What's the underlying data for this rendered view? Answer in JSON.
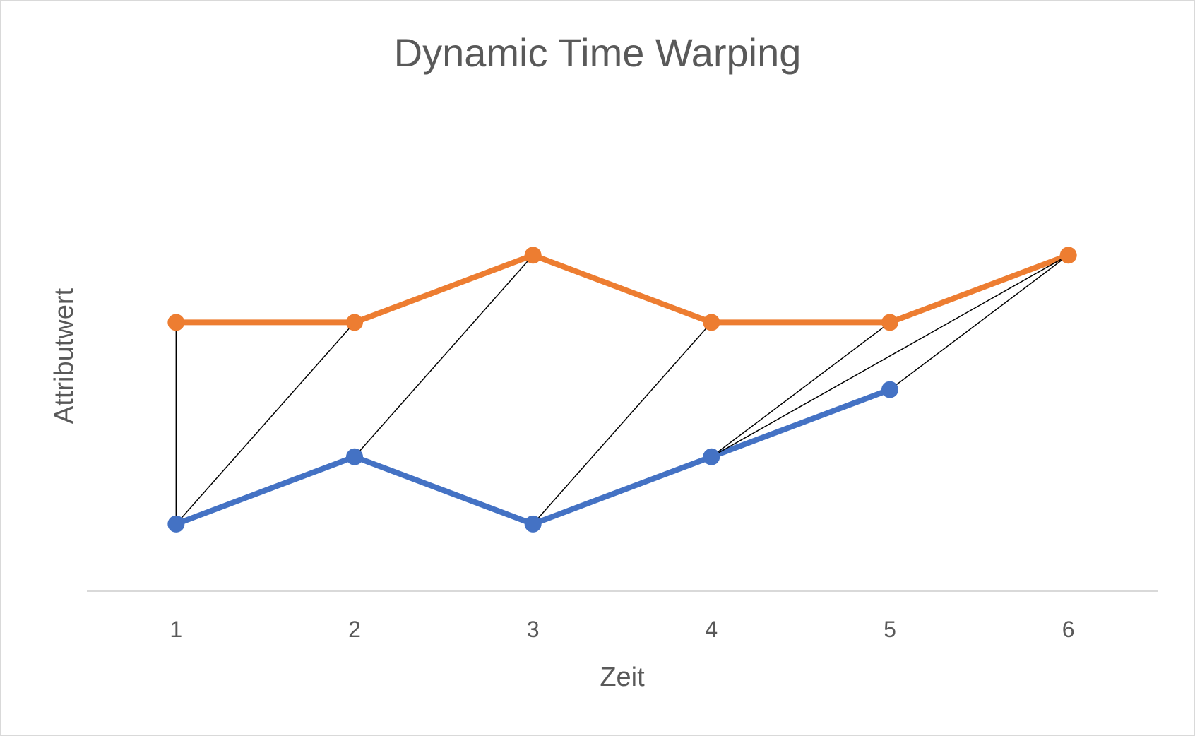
{
  "chart_data": {
    "type": "line",
    "title": "Dynamic Time Warping",
    "xlabel": "Zeit",
    "ylabel": "Attributwert",
    "categories": [
      "1",
      "2",
      "3",
      "4",
      "5",
      "6"
    ],
    "ylim": [
      0,
      7
    ],
    "grid": false,
    "y_tick_labels_visible": false,
    "series": [
      {
        "color": "#ED7D31",
        "x": [
          1,
          2,
          3,
          4,
          5,
          6
        ],
        "values": [
          4,
          4,
          5,
          4,
          4,
          5
        ]
      },
      {
        "color": "#4472C4",
        "x": [
          1,
          2,
          3,
          4,
          5
        ],
        "values": [
          1,
          2,
          1,
          2,
          3
        ]
      }
    ],
    "alignments": {
      "color": "#000000",
      "pairs": [
        {
          "orange_x": 1,
          "blue_x": 1
        },
        {
          "orange_x": 2,
          "blue_x": 1
        },
        {
          "orange_x": 3,
          "blue_x": 2
        },
        {
          "orange_x": 4,
          "blue_x": 3
        },
        {
          "orange_x": 5,
          "blue_x": 4
        },
        {
          "orange_x": 6,
          "blue_x": 4
        },
        {
          "orange_x": 6,
          "blue_x": 5
        }
      ]
    }
  }
}
